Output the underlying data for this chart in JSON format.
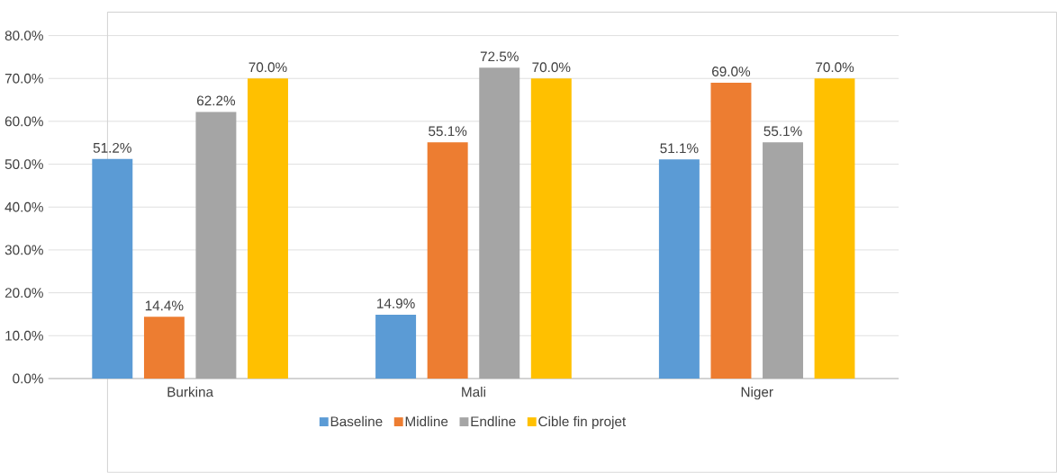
{
  "chart_data": {
    "type": "bar",
    "categories": [
      "Burkina",
      "Mali",
      "Niger"
    ],
    "series": [
      {
        "name": "Baseline",
        "color": "#5b9bd5",
        "values": [
          51.2,
          14.9,
          51.1
        ],
        "value_labels": [
          "51.2%",
          "14.9%",
          "51.1%"
        ]
      },
      {
        "name": "Midline",
        "color": "#ed7d31",
        "values": [
          14.4,
          55.1,
          69.0
        ],
        "value_labels": [
          "14.4%",
          "55.1%",
          "69.0%"
        ]
      },
      {
        "name": "Endline",
        "color": "#a5a5a5",
        "values": [
          62.2,
          72.5,
          55.1
        ],
        "value_labels": [
          "62.2%",
          "72.5%",
          "55.1%"
        ]
      },
      {
        "name": "Cible fin projet",
        "color": "#ffc000",
        "values": [
          70.0,
          70.0,
          70.0
        ],
        "value_labels": [
          "70.0%",
          "70.0%",
          "70.0%"
        ]
      }
    ],
    "ylim": [
      0,
      80
    ],
    "yticks": [
      {
        "value": 0,
        "label": "0.0%"
      },
      {
        "value": 10,
        "label": "10.0%"
      },
      {
        "value": 20,
        "label": "20.0%"
      },
      {
        "value": 30,
        "label": "30.0%"
      },
      {
        "value": 40,
        "label": "40.0%"
      },
      {
        "value": 50,
        "label": "50.0%"
      },
      {
        "value": 60,
        "label": "60.0%"
      },
      {
        "value": 70,
        "label": "70.0%"
      },
      {
        "value": 80,
        "label": "80.0%"
      }
    ],
    "grid": "y",
    "legend": "bottom"
  }
}
